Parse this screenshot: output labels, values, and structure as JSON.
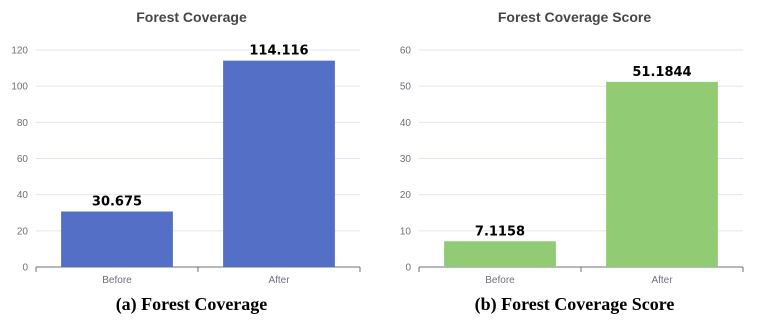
{
  "chart_data": [
    {
      "type": "bar",
      "title": "Forest Coverage",
      "caption": "(a) Forest Coverage",
      "categories": [
        "Before",
        "After"
      ],
      "values": [
        30.675,
        114.116
      ],
      "value_labels": [
        "30.675",
        "114.116"
      ],
      "ylim": [
        0,
        120
      ],
      "yticks": [
        0,
        20,
        40,
        60,
        80,
        100,
        120
      ],
      "color": "#5470c6",
      "grid": true
    },
    {
      "type": "bar",
      "title": "Forest Coverage Score",
      "caption": "(b) Forest Coverage Score",
      "categories": [
        "Before",
        "After"
      ],
      "values": [
        7.1158,
        51.1844
      ],
      "value_labels": [
        "7.1158",
        "51.1844"
      ],
      "ylim": [
        0,
        60
      ],
      "yticks": [
        0,
        10,
        20,
        30,
        40,
        50,
        60
      ],
      "color": "#91cc75",
      "grid": true
    }
  ]
}
